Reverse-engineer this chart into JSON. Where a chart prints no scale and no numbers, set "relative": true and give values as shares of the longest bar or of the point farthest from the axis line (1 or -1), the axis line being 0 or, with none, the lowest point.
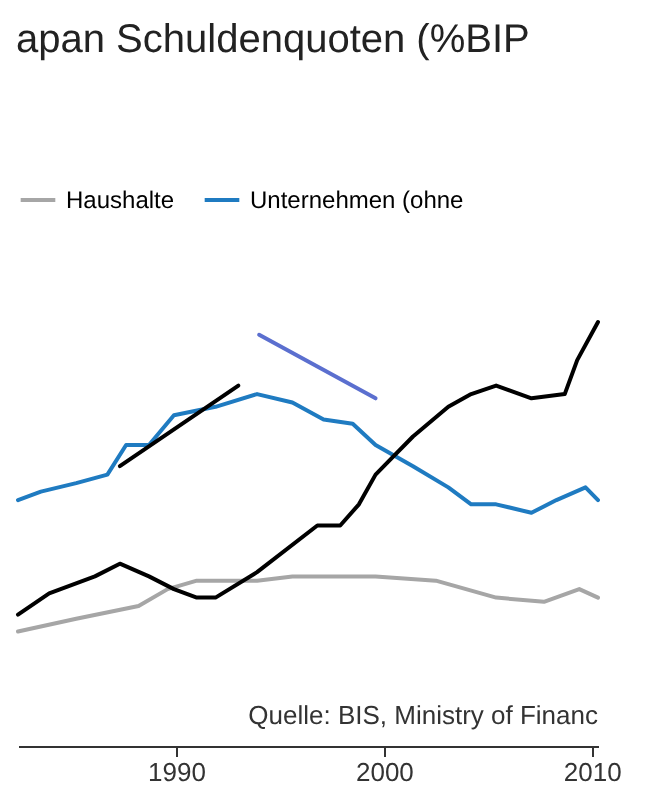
{
  "chart_data": {
    "type": "line",
    "title": "apan Schuldenquoten (%BIP",
    "relative": true,
    "legend": "top",
    "xlim": [
      1982.4,
      2010.3
    ],
    "xticks": [
      1990,
      2000,
      2010
    ],
    "annotations": [
      "Quelle: BIS, Ministry of Financ"
    ],
    "series": [
      {
        "name": "Haushalte",
        "color": "#a6a6a6",
        "x": [
          1982.4,
          1985.2,
          1988.2,
          1989.6,
          1991.0,
          1993.9,
          1995.6,
          1999.6,
          2002.5,
          2005.4,
          2007.7,
          2009.4,
          2010.3
        ],
        "values": [
          0.27,
          0.3,
          0.33,
          0.37,
          0.39,
          0.39,
          0.4,
          0.4,
          0.39,
          0.35,
          0.34,
          0.37,
          0.35
        ]
      },
      {
        "name": "Unternehmen (ohne",
        "color": "#1f7bc1",
        "x": [
          1982.4,
          1983.5,
          1985.2,
          1986.7,
          1987.6,
          1988.7,
          1989.9,
          1991.9,
          1993.9,
          1995.6,
          1997.1,
          1998.5,
          1999.6,
          2001.4,
          2003.1,
          2004.2,
          2005.4,
          2007.1,
          2008.3,
          2009.7,
          2010.3
        ],
        "values": [
          0.58,
          0.6,
          0.62,
          0.64,
          0.71,
          0.71,
          0.78,
          0.8,
          0.83,
          0.81,
          0.77,
          0.76,
          0.71,
          0.66,
          0.61,
          0.57,
          0.57,
          0.55,
          0.58,
          0.61,
          0.58
        ]
      },
      {
        "color": "#000000",
        "x": [
          1982.4,
          1983.9,
          1986.1,
          1987.3,
          1988.7,
          1989.9,
          1991.0,
          1991.9,
          1993.9,
          1996.8,
          1997.9,
          1998.8,
          1999.6,
          2000.2,
          2001.4,
          2003.1,
          2004.2,
          2005.4,
          2007.1,
          2008.7,
          2009.3,
          2010.3
        ],
        "values": [
          0.31,
          0.36,
          0.4,
          0.43,
          0.4,
          0.37,
          0.35,
          0.35,
          0.41,
          0.52,
          0.52,
          0.57,
          0.64,
          0.67,
          0.73,
          0.8,
          0.83,
          0.85,
          0.82,
          0.83,
          0.91,
          1
        ]
      },
      {
        "type": "line",
        "color": "#000000",
        "x": [
          1987.3,
          1993.0
        ],
        "values": [
          0.66,
          0.85
        ]
      },
      {
        "type": "line",
        "color": "#5b6fcf",
        "x": [
          1994.0,
          1999.6
        ],
        "values": [
          0.97,
          0.82
        ]
      }
    ]
  }
}
